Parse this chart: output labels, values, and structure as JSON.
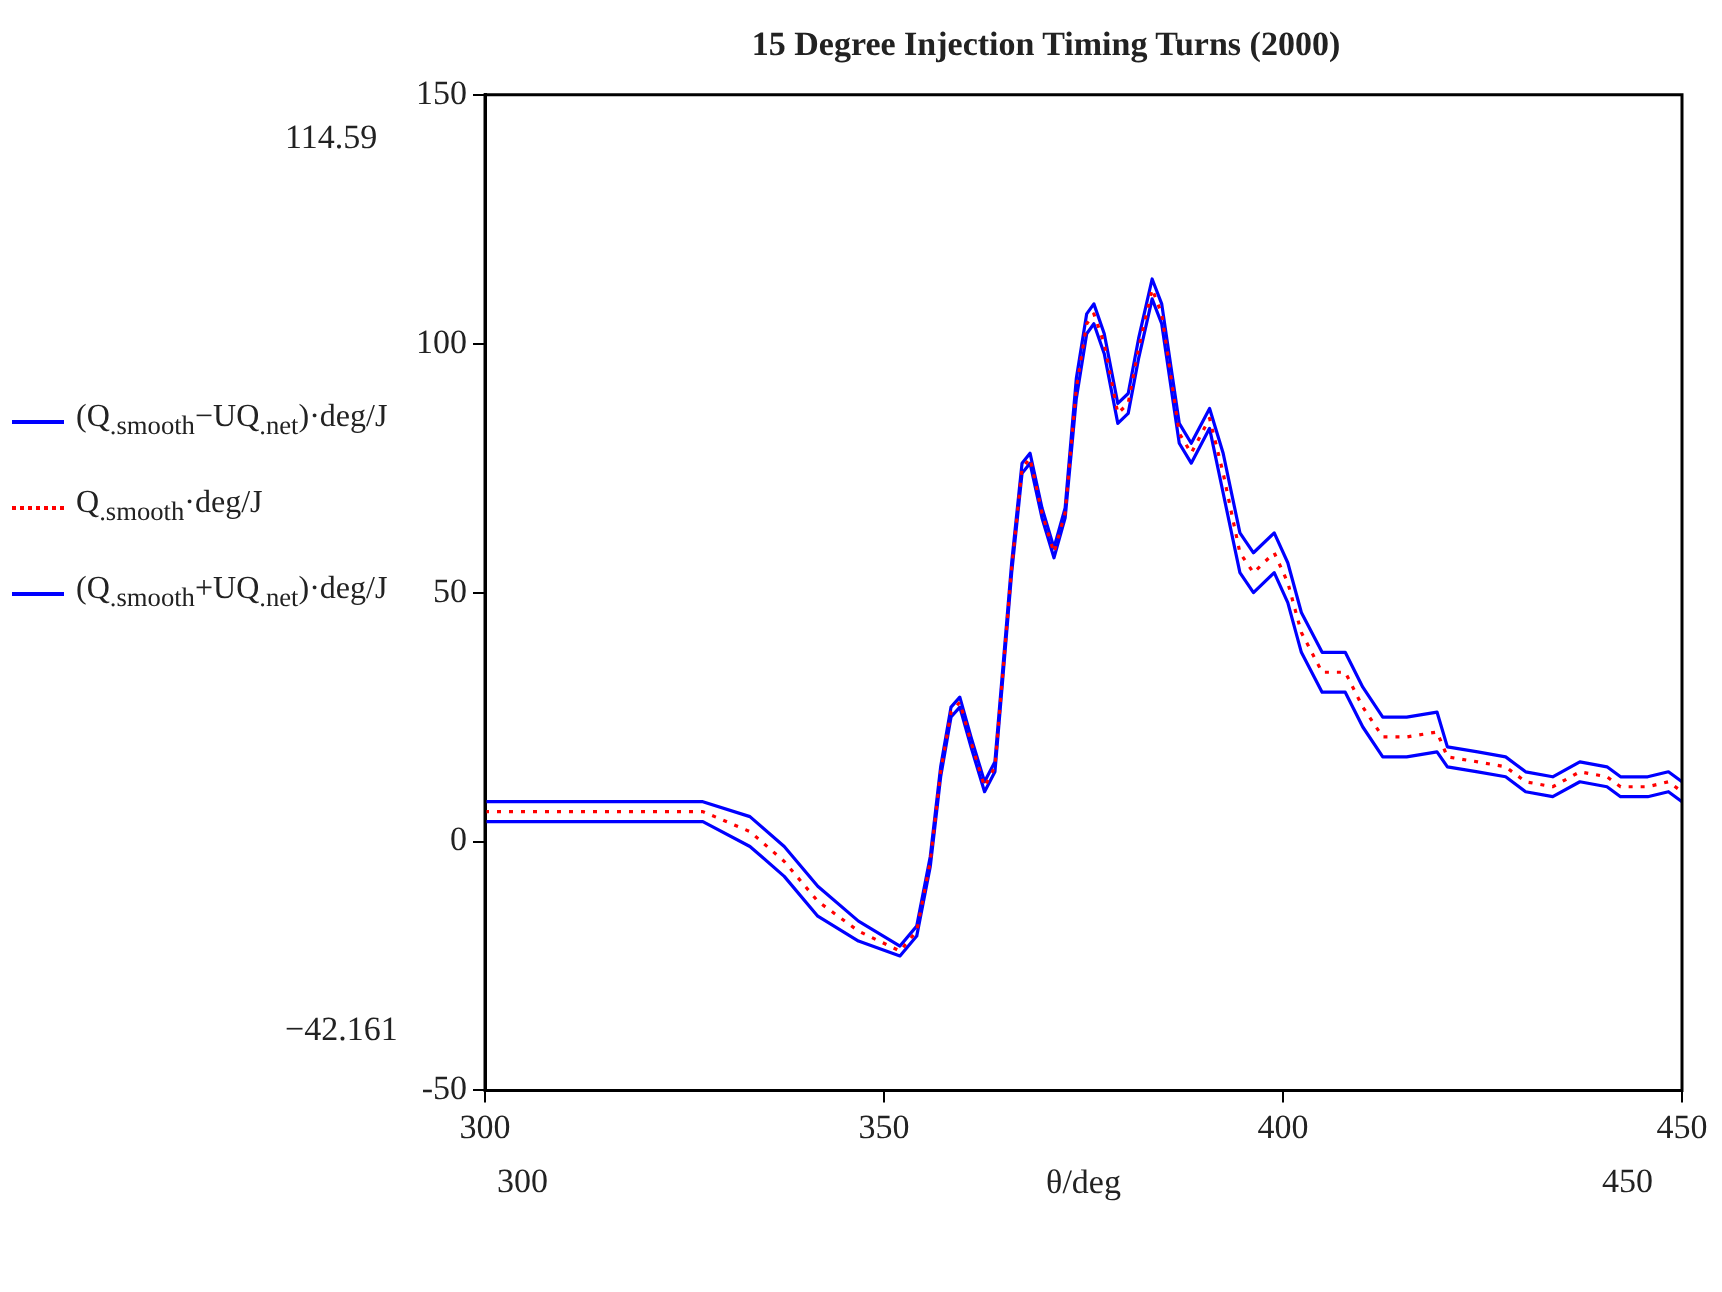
{
  "chart_data": {
    "type": "line",
    "title": "15 Degree Injection Timing Turns (2000)",
    "xlabel": "θ/deg",
    "x": [
      300,
      307.7,
      316.2,
      327.3,
      333.2,
      337.5,
      341.7,
      346.8,
      352,
      354.1,
      355.8,
      357.1,
      358.4,
      359.5,
      360.9,
      362.6,
      363.9,
      364.9,
      366,
      367.3,
      368.3,
      369.8,
      371.3,
      372.7,
      374.1,
      375.4,
      376.3,
      377.6,
      379.3,
      380.6,
      381.9,
      383.6,
      384.8,
      387,
      388.5,
      390.8,
      392.5,
      394.6,
      396.3,
      398.9,
      400.6,
      402.3,
      404.9,
      407.8,
      410,
      412.5,
      415.5,
      419.3,
      420.6,
      424.4,
      427.9,
      430.4,
      433.8,
      437.2,
      440.6,
      442.3,
      445.7,
      448.3,
      450
    ],
    "series": [
      {
        "name": "(Q$_{.smooth}$−UQ$_{.net}$)·deg/J",
        "color": "#0000ff",
        "line_style": "solid",
        "values": [
          4,
          4,
          4,
          4,
          -1,
          -7,
          -15,
          -20,
          -23,
          -19,
          -5,
          13,
          25,
          27,
          19,
          10,
          14,
          33,
          54,
          74,
          76,
          65,
          57,
          65,
          89,
          102,
          104,
          98,
          84,
          86,
          97,
          109,
          104,
          80,
          76,
          83,
          70,
          54,
          50,
          54,
          48,
          38,
          30,
          30,
          23,
          17,
          17,
          18,
          15,
          14,
          13,
          10,
          9,
          12,
          11,
          9,
          9,
          10,
          8
        ]
      },
      {
        "name": "Q$_{.smooth}$·deg/J",
        "color": "#ff0000",
        "line_style": "dotted",
        "values": [
          6,
          6,
          6,
          6,
          2,
          -4,
          -12,
          -18,
          -22,
          -18,
          -4,
          14,
          26,
          28,
          20,
          11,
          15,
          34,
          55,
          75,
          77,
          66,
          58,
          66,
          91,
          104,
          106,
          100,
          86,
          88,
          99,
          111,
          106,
          82,
          78,
          85,
          74,
          58,
          54,
          58,
          52,
          42,
          34,
          34,
          27,
          21,
          21,
          22,
          17,
          16,
          15,
          12,
          11,
          14,
          13,
          11,
          11,
          12,
          10
        ]
      },
      {
        "name": "(Q$_{.smooth}$+UQ$_{.net}$)·deg/J",
        "color": "#0000ff",
        "line_style": "solid",
        "values": [
          8,
          8,
          8,
          8,
          5,
          -1,
          -9,
          -16,
          -21,
          -17,
          -3,
          15,
          27,
          29,
          21,
          12,
          16,
          35,
          56,
          76,
          78,
          67,
          59,
          67,
          93,
          106,
          108,
          102,
          88,
          90,
          101,
          113,
          108,
          84,
          80,
          87,
          78,
          62,
          58,
          62,
          56,
          46,
          38,
          38,
          31,
          25,
          25,
          26,
          19,
          18,
          17,
          14,
          13,
          16,
          15,
          13,
          13,
          14,
          12
        ]
      }
    ],
    "xlim": [
      300,
      450
    ],
    "xticks": [
      300,
      350,
      400,
      450
    ],
    "ylim": [
      -50,
      150
    ],
    "yticks": [
      -50,
      0,
      50,
      100,
      150
    ],
    "grid": false,
    "legend": "left",
    "marker": "none",
    "annotations": [
      "114.59",
      "−42.161",
      "300",
      "450"
    ]
  }
}
